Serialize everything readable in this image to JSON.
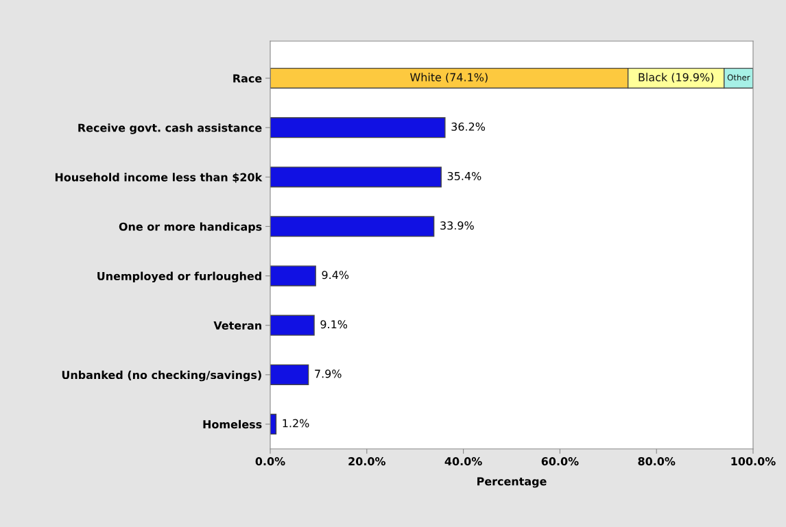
{
  "chart_data": {
    "type": "bar",
    "orientation": "horizontal",
    "stacked": true,
    "xlabel": "Percentage",
    "categories": [
      "Race",
      "Receive govt. cash assistance",
      "Household income less than $20k",
      "One or more handicaps",
      "Unemployed or furloughed",
      "Veteran",
      "Unbanked (no checking/savings)",
      "Homeless"
    ],
    "series": [
      {
        "name": "White (74.1%)",
        "color": "#fdc93f",
        "values": [
          74.1,
          null,
          null,
          null,
          null,
          null,
          null,
          null
        ]
      },
      {
        "name": "Black (19.9%)",
        "color": "#ffff99",
        "values": [
          19.9,
          null,
          null,
          null,
          null,
          null,
          null,
          null
        ]
      },
      {
        "name": "Other",
        "color": "#a6f0e6",
        "values": [
          6.0,
          null,
          null,
          null,
          null,
          null,
          null,
          null
        ]
      },
      {
        "color": "#1111e3",
        "values": [
          null,
          36.2,
          35.4,
          33.9,
          9.4,
          9.1,
          7.9,
          1.2
        ],
        "value_labels": [
          null,
          "36.2%",
          "35.4%",
          "33.9%",
          "9.4%",
          "9.1%",
          "7.9%",
          "1.2%"
        ]
      }
    ],
    "xlim": [
      0,
      100
    ],
    "xticks": [
      {
        "value": 0,
        "label": "0.0%"
      },
      {
        "value": 20,
        "label": "20.0%"
      },
      {
        "value": 40,
        "label": "40.0%"
      },
      {
        "value": 60,
        "label": "60.0%"
      },
      {
        "value": 80,
        "label": "80.0%"
      },
      {
        "value": 100,
        "label": "100.0%"
      }
    ],
    "grid": false,
    "legend": false
  }
}
